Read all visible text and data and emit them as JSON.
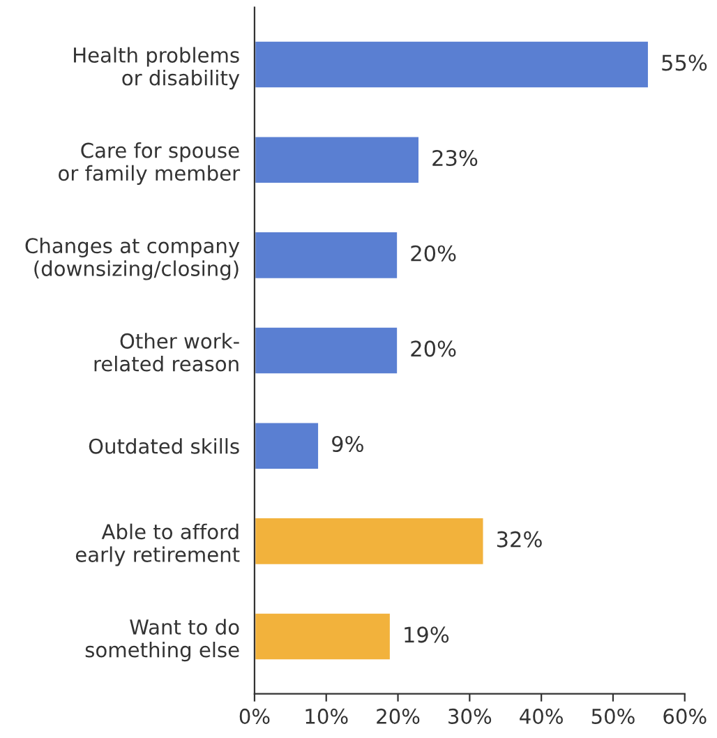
{
  "chart_data": {
    "type": "bar",
    "orientation": "horizontal",
    "categories": [
      "Health problems\nor disability",
      "Care for spouse\nor family member",
      "Changes at company\n(downsizing/closing)",
      "Other work-\nrelated reason",
      "Outdated skills",
      "Able to afford\nearly retirement",
      "Want to do\nsomething else"
    ],
    "values": [
      55,
      23,
      20,
      20,
      9,
      32,
      19
    ],
    "colors": [
      "#5a7fd2",
      "#5a7fd2",
      "#5a7fd2",
      "#5a7fd2",
      "#5a7fd2",
      "#f2b23c",
      "#f2b23c"
    ],
    "value_labels": [
      "55%",
      "23%",
      "20%",
      "20%",
      "9%",
      "32%",
      "19%"
    ],
    "xlim": [
      0,
      60
    ],
    "xticks": [
      {
        "value": 0,
        "label": "0%"
      },
      {
        "value": 10,
        "label": "10%"
      },
      {
        "value": 20,
        "label": "20%"
      },
      {
        "value": 30,
        "label": "30%"
      },
      {
        "value": 40,
        "label": "40%"
      },
      {
        "value": 50,
        "label": "50%"
      },
      {
        "value": 60,
        "label": "60%"
      }
    ],
    "grid": false
  }
}
